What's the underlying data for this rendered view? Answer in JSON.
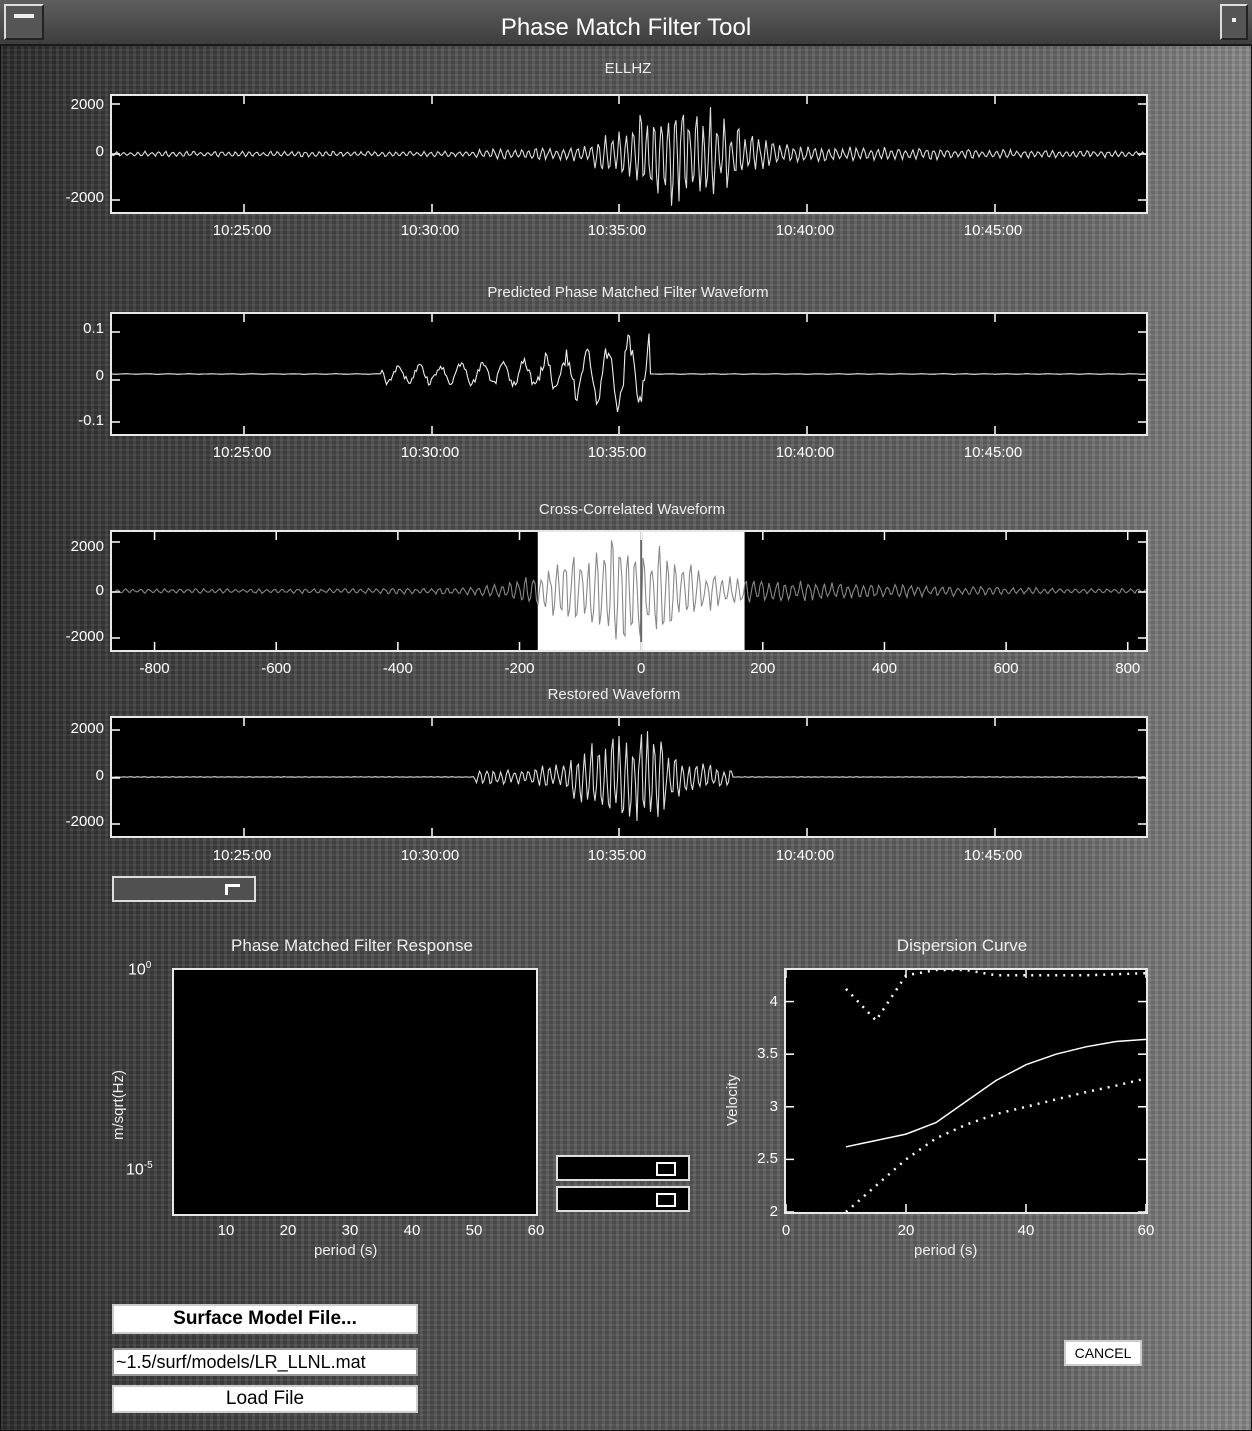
{
  "window": {
    "title": "Phase Match Filter Tool"
  },
  "time_ticks": [
    "10:25:00",
    "10:30:00",
    "10:35:00",
    "10:40:00",
    "10:45:00"
  ],
  "plots": {
    "ellhz": {
      "title": "ELLHZ",
      "yticks": [
        "2000",
        "0",
        "-2000"
      ]
    },
    "predicted": {
      "title": "Predicted Phase Matched Filter Waveform",
      "yticks": [
        "0.1",
        "0",
        "-0.1"
      ]
    },
    "cross": {
      "title": "Cross-Correlated Waveform",
      "yticks": [
        "2000",
        "0",
        "-2000"
      ],
      "xticks": [
        "-800",
        "-600",
        "-400",
        "-200",
        "0",
        "200",
        "400",
        "600",
        "800"
      ],
      "selection_range": [
        -170,
        170
      ]
    },
    "restored": {
      "title": "Restored Waveform",
      "yticks": [
        "2000",
        "0",
        "-2000"
      ]
    },
    "response": {
      "title": "Phase Matched Filter Response",
      "ylabel": "m/sqrt(Hz)",
      "ytick_top": "10",
      "ytick_top_exp": "0",
      "ytick_mid": "10",
      "ytick_mid_exp": "-5",
      "xticks": [
        "10",
        "20",
        "30",
        "40",
        "50",
        "60"
      ],
      "xlabel": "period (s)"
    },
    "dispersion": {
      "title": "Dispersion Curve",
      "ylabel": "Velocity",
      "yticks": [
        "4",
        "3.5",
        "3",
        "2.5",
        "2"
      ],
      "xticks": [
        "0",
        "20",
        "40",
        "60"
      ],
      "xlabel": "period (s)"
    }
  },
  "chart_data": [
    {
      "type": "line",
      "title": "Dispersion Curve",
      "xlabel": "period (s)",
      "ylabel": "Velocity",
      "xlim": [
        0,
        60
      ],
      "ylim": [
        2,
        4.3
      ],
      "series": [
        {
          "x": [
            10,
            15,
            20,
            25,
            30,
            35,
            40,
            45,
            50,
            55,
            60
          ],
          "values": [
            2.62,
            2.68,
            2.74,
            2.85,
            3.05,
            3.25,
            3.4,
            3.5,
            3.57,
            3.62,
            3.64
          ]
        },
        {
          "x": [
            10,
            15,
            20,
            25,
            30,
            35,
            40,
            45,
            50,
            55,
            60
          ],
          "values": [
            2.0,
            2.25,
            2.5,
            2.7,
            2.83,
            2.93,
            3.0,
            3.07,
            3.14,
            3.2,
            3.27
          ]
        },
        {
          "x": [
            10,
            15,
            20,
            25,
            30,
            35,
            40,
            45,
            50,
            55,
            60
          ],
          "values": [
            4.12,
            3.82,
            4.25,
            4.3,
            4.3,
            4.25,
            4.25,
            4.25,
            4.25,
            4.26,
            4.27
          ]
        }
      ]
    }
  ],
  "controls": {
    "surface_model_button": "Surface Model File...",
    "model_path": "~1.5/surf/models/LR_LLNL.mat",
    "load_button": "Load File",
    "cancel_button": "CANCEL"
  }
}
